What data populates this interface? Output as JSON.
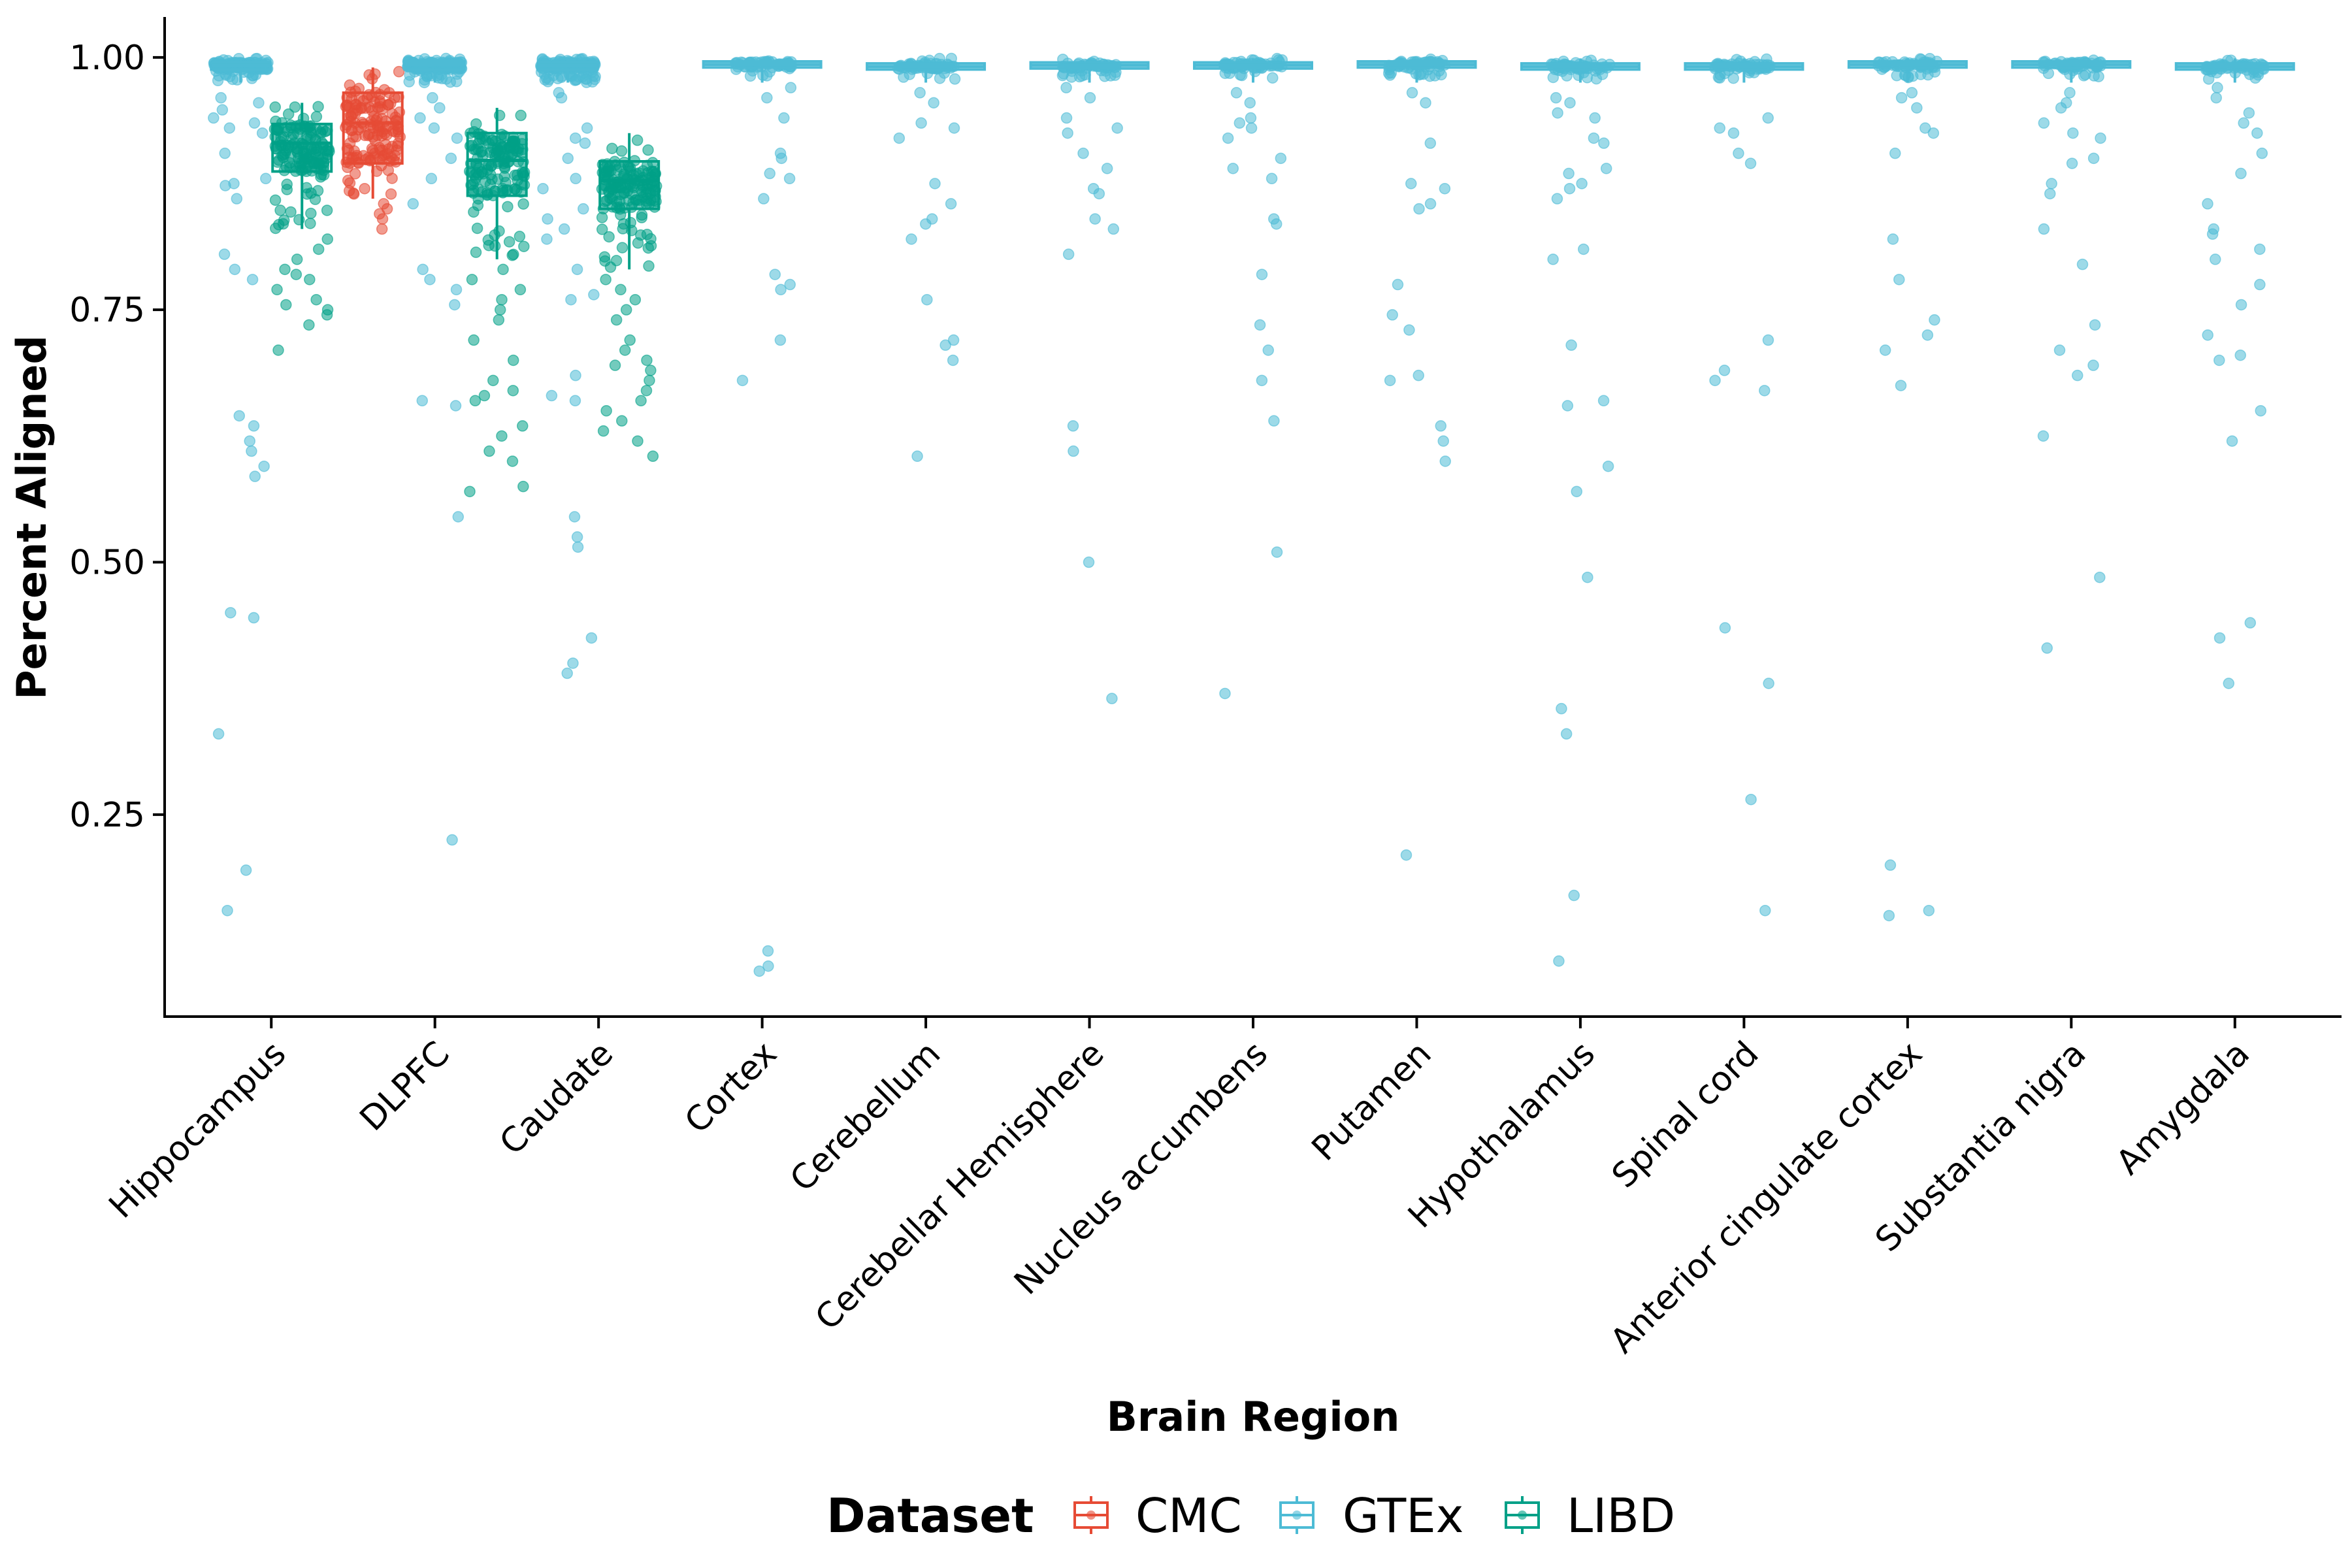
{
  "chart_data": {
    "type": "box-jitter",
    "xlabel": "Brain Region",
    "ylabel": "Percent Aligned",
    "ylim": [
      0.05,
      1.04
    ],
    "yticks": [
      0.25,
      0.5,
      0.75,
      1.0
    ],
    "ytick_labels": [
      "0.25",
      "0.50",
      "0.75",
      "1.00"
    ],
    "grid": false,
    "legend": {
      "title": "Dataset",
      "position": "bottom",
      "entries": [
        "CMC",
        "GTEx",
        "LIBD"
      ]
    },
    "colors": {
      "CMC": "#E64B35",
      "GTEx": "#4DBBD5",
      "LIBD": "#00A087"
    },
    "categories": [
      "Hippocampus",
      "DLPFC",
      "Caudate",
      "Cortex",
      "Cerebellum",
      "Cerebellar Hemisphere",
      "Nucleus accumbens",
      "Putamen",
      "Hypothalamus",
      "Spinal cord",
      "Anterior cingulate cortex",
      "Substantia nigra",
      "Amygdala"
    ],
    "boxes": [
      {
        "category": "Hippocampus",
        "dataset": "GTEx",
        "q1": 0.988,
        "median": 0.992,
        "q3": 0.995,
        "lo": 0.975,
        "hi": 0.999,
        "points": [
          0.96,
          0.955,
          0.948,
          0.94,
          0.935,
          0.93,
          0.925,
          0.905,
          0.88,
          0.875,
          0.873,
          0.86,
          0.805,
          0.79,
          0.78,
          0.645,
          0.635,
          0.62,
          0.61,
          0.595,
          0.585,
          0.45,
          0.445,
          0.33,
          0.195,
          0.155
        ]
      },
      {
        "category": "Hippocampus",
        "dataset": "LIBD",
        "q1": 0.887,
        "median": 0.915,
        "q3": 0.934,
        "lo": 0.83,
        "hi": 0.955,
        "points": [
          0.82,
          0.81,
          0.8,
          0.79,
          0.785,
          0.78,
          0.77,
          0.76,
          0.755,
          0.75,
          0.745,
          0.735,
          0.71
        ]
      },
      {
        "category": "DLPFC",
        "dataset": "CMC",
        "q1": 0.895,
        "median": 0.935,
        "q3": 0.965,
        "lo": 0.86,
        "hi": 0.99,
        "points": [
          0.855,
          0.85,
          0.845,
          0.84,
          0.83
        ]
      },
      {
        "category": "DLPFC",
        "dataset": "GTEx",
        "q1": 0.988,
        "median": 0.993,
        "q3": 0.996,
        "lo": 0.975,
        "hi": 0.999,
        "points": [
          0.96,
          0.95,
          0.94,
          0.93,
          0.92,
          0.9,
          0.88,
          0.855,
          0.79,
          0.78,
          0.77,
          0.755,
          0.66,
          0.655,
          0.545,
          0.225
        ]
      },
      {
        "category": "DLPFC",
        "dataset": "LIBD",
        "q1": 0.863,
        "median": 0.898,
        "q3": 0.925,
        "lo": 0.8,
        "hi": 0.95,
        "points": [
          0.79,
          0.78,
          0.77,
          0.76,
          0.75,
          0.74,
          0.72,
          0.7,
          0.68,
          0.67,
          0.665,
          0.66,
          0.635,
          0.625,
          0.61,
          0.6,
          0.575,
          0.57
        ]
      },
      {
        "category": "Caudate",
        "dataset": "GTEx",
        "q1": 0.988,
        "median": 0.992,
        "q3": 0.995,
        "lo": 0.975,
        "hi": 0.999,
        "points": [
          0.965,
          0.96,
          0.93,
          0.92,
          0.915,
          0.9,
          0.88,
          0.87,
          0.85,
          0.84,
          0.83,
          0.82,
          0.79,
          0.765,
          0.76,
          0.685,
          0.665,
          0.66,
          0.545,
          0.525,
          0.515,
          0.425,
          0.4,
          0.39
        ]
      },
      {
        "category": "Caudate",
        "dataset": "LIBD",
        "q1": 0.85,
        "median": 0.878,
        "q3": 0.897,
        "lo": 0.79,
        "hi": 0.925,
        "points": [
          0.78,
          0.77,
          0.76,
          0.75,
          0.74,
          0.72,
          0.71,
          0.7,
          0.695,
          0.69,
          0.68,
          0.67,
          0.66,
          0.65,
          0.64,
          0.63,
          0.62,
          0.605
        ]
      },
      {
        "category": "Cortex",
        "dataset": "GTEx",
        "q1": 0.99,
        "median": 0.993,
        "q3": 0.996,
        "lo": 0.975,
        "hi": 0.999,
        "points": [
          0.97,
          0.96,
          0.94,
          0.905,
          0.9,
          0.885,
          0.88,
          0.86,
          0.785,
          0.775,
          0.77,
          0.72,
          0.68,
          0.115,
          0.1,
          0.095
        ]
      },
      {
        "category": "Cerebellum",
        "dataset": "GTEx",
        "q1": 0.988,
        "median": 0.991,
        "q3": 0.994,
        "lo": 0.975,
        "hi": 0.999,
        "points": [
          0.965,
          0.955,
          0.935,
          0.93,
          0.92,
          0.875,
          0.855,
          0.84,
          0.835,
          0.82,
          0.76,
          0.72,
          0.715,
          0.7,
          0.605
        ]
      },
      {
        "category": "Cerebellar Hemisphere",
        "dataset": "GTEx",
        "q1": 0.989,
        "median": 0.992,
        "q3": 0.995,
        "lo": 0.975,
        "hi": 0.999,
        "points": [
          0.97,
          0.96,
          0.94,
          0.93,
          0.925,
          0.905,
          0.89,
          0.87,
          0.865,
          0.84,
          0.83,
          0.805,
          0.635,
          0.61,
          0.5,
          0.365
        ]
      },
      {
        "category": "Nucleus accumbens",
        "dataset": "GTEx",
        "q1": 0.989,
        "median": 0.992,
        "q3": 0.995,
        "lo": 0.975,
        "hi": 0.999,
        "points": [
          0.965,
          0.955,
          0.94,
          0.935,
          0.93,
          0.92,
          0.9,
          0.89,
          0.88,
          0.84,
          0.835,
          0.785,
          0.735,
          0.71,
          0.68,
          0.64,
          0.51,
          0.37
        ]
      },
      {
        "category": "Putamen",
        "dataset": "GTEx",
        "q1": 0.99,
        "median": 0.993,
        "q3": 0.996,
        "lo": 0.975,
        "hi": 0.999,
        "points": [
          0.965,
          0.955,
          0.915,
          0.875,
          0.87,
          0.855,
          0.85,
          0.775,
          0.745,
          0.73,
          0.685,
          0.68,
          0.635,
          0.62,
          0.6,
          0.21
        ]
      },
      {
        "category": "Hypothalamus",
        "dataset": "GTEx",
        "q1": 0.988,
        "median": 0.991,
        "q3": 0.994,
        "lo": 0.975,
        "hi": 0.999,
        "points": [
          0.96,
          0.955,
          0.945,
          0.94,
          0.92,
          0.915,
          0.89,
          0.885,
          0.875,
          0.87,
          0.86,
          0.81,
          0.8,
          0.715,
          0.66,
          0.655,
          0.595,
          0.57,
          0.485,
          0.355,
          0.33,
          0.17,
          0.105
        ]
      },
      {
        "category": "Spinal cord",
        "dataset": "GTEx",
        "q1": 0.988,
        "median": 0.991,
        "q3": 0.994,
        "lo": 0.975,
        "hi": 0.999,
        "points": [
          0.94,
          0.93,
          0.925,
          0.905,
          0.895,
          0.72,
          0.69,
          0.68,
          0.67,
          0.435,
          0.38,
          0.265,
          0.155
        ]
      },
      {
        "category": "Anterior cingulate cortex",
        "dataset": "GTEx",
        "q1": 0.99,
        "median": 0.993,
        "q3": 0.996,
        "lo": 0.975,
        "hi": 0.999,
        "points": [
          0.965,
          0.96,
          0.95,
          0.93,
          0.925,
          0.905,
          0.82,
          0.78,
          0.74,
          0.725,
          0.71,
          0.675,
          0.2,
          0.155,
          0.15
        ]
      },
      {
        "category": "Substantia nigra",
        "dataset": "GTEx",
        "q1": 0.99,
        "median": 0.993,
        "q3": 0.996,
        "lo": 0.975,
        "hi": 0.999,
        "points": [
          0.965,
          0.955,
          0.95,
          0.935,
          0.925,
          0.92,
          0.9,
          0.895,
          0.875,
          0.865,
          0.83,
          0.795,
          0.735,
          0.71,
          0.695,
          0.685,
          0.625,
          0.485,
          0.415
        ]
      },
      {
        "category": "Amygdala",
        "dataset": "GTEx",
        "q1": 0.988,
        "median": 0.991,
        "q3": 0.994,
        "lo": 0.975,
        "hi": 0.999,
        "points": [
          0.97,
          0.96,
          0.945,
          0.935,
          0.925,
          0.905,
          0.885,
          0.855,
          0.83,
          0.825,
          0.81,
          0.8,
          0.775,
          0.755,
          0.725,
          0.705,
          0.7,
          0.65,
          0.62,
          0.44,
          0.425,
          0.38
        ]
      }
    ]
  }
}
